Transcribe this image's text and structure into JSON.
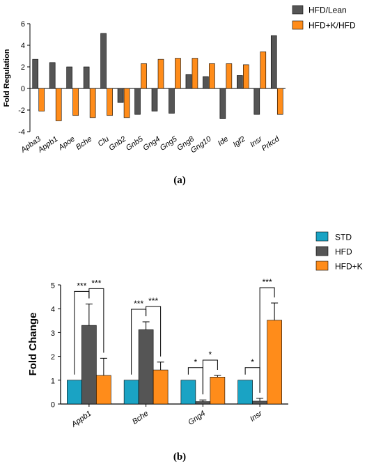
{
  "chart_data": [
    {
      "type": "bar",
      "panel_label": "(a)",
      "ylabel": "Fold Regulation",
      "ylim": [
        -4,
        6
      ],
      "yticks": [
        -4,
        -2,
        0,
        2,
        4,
        6
      ],
      "categories": [
        "Apba3",
        "Appb1",
        "Apoe",
        "Bche",
        "Clu",
        "Gnb2",
        "Gnb5",
        "Gng4",
        "Gng5",
        "Gng8",
        "Gng10",
        "Ide",
        "Igf2",
        "Insr",
        "Prkcd"
      ],
      "legend_position": "top-right",
      "series": [
        {
          "name": "HFD/Lean",
          "color": "#555555",
          "values": [
            2.7,
            2.4,
            2.0,
            2.0,
            5.1,
            -1.3,
            -2.4,
            -2.1,
            -2.3,
            1.3,
            1.1,
            -2.8,
            1.2,
            -2.4,
            4.9
          ]
        },
        {
          "name": "HFD+K/HFD",
          "color": "#ff8c1a",
          "values": [
            -2.1,
            -3.0,
            -2.5,
            -2.7,
            -2.5,
            -2.7,
            2.3,
            2.7,
            2.8,
            2.8,
            2.3,
            2.3,
            2.2,
            3.4,
            -2.4
          ]
        }
      ]
    },
    {
      "type": "bar",
      "panel_label": "(b)",
      "ylabel": "Fold Change",
      "ylim": [
        0,
        5
      ],
      "yticks": [
        0,
        1,
        2,
        3,
        4,
        5
      ],
      "categories": [
        "Appb1",
        "Bche",
        "Gng4",
        "Insr"
      ],
      "legend_position": "top-right",
      "series": [
        {
          "name": "STD",
          "color": "#1aa3c4",
          "values": [
            1,
            1,
            1,
            1
          ],
          "errors": [
            0,
            0,
            0,
            0
          ]
        },
        {
          "name": "HFD",
          "color": "#555555",
          "values": [
            3.3,
            3.12,
            0.1,
            0.12
          ],
          "errors": [
            0.9,
            0.33,
            0.07,
            0.12
          ]
        },
        {
          "name": "HFD+K",
          "color": "#ff8c1a",
          "values": [
            1.2,
            1.43,
            1.13,
            3.52
          ],
          "errors": [
            0.72,
            0.33,
            0.07,
            0.72
          ]
        }
      ],
      "significance": [
        {
          "category": 0,
          "pair": [
            0,
            1
          ],
          "label": "***"
        },
        {
          "category": 0,
          "pair": [
            1,
            2
          ],
          "label": "***"
        },
        {
          "category": 1,
          "pair": [
            0,
            1
          ],
          "label": "***"
        },
        {
          "category": 1,
          "pair": [
            1,
            2
          ],
          "label": "***"
        },
        {
          "category": 2,
          "pair": [
            0,
            1
          ],
          "label": "*"
        },
        {
          "category": 2,
          "pair": [
            1,
            2
          ],
          "label": "*"
        },
        {
          "category": 3,
          "pair": [
            0,
            1
          ],
          "label": "*"
        },
        {
          "category": 3,
          "pair": [
            1,
            2
          ],
          "label": "***"
        }
      ]
    }
  ]
}
